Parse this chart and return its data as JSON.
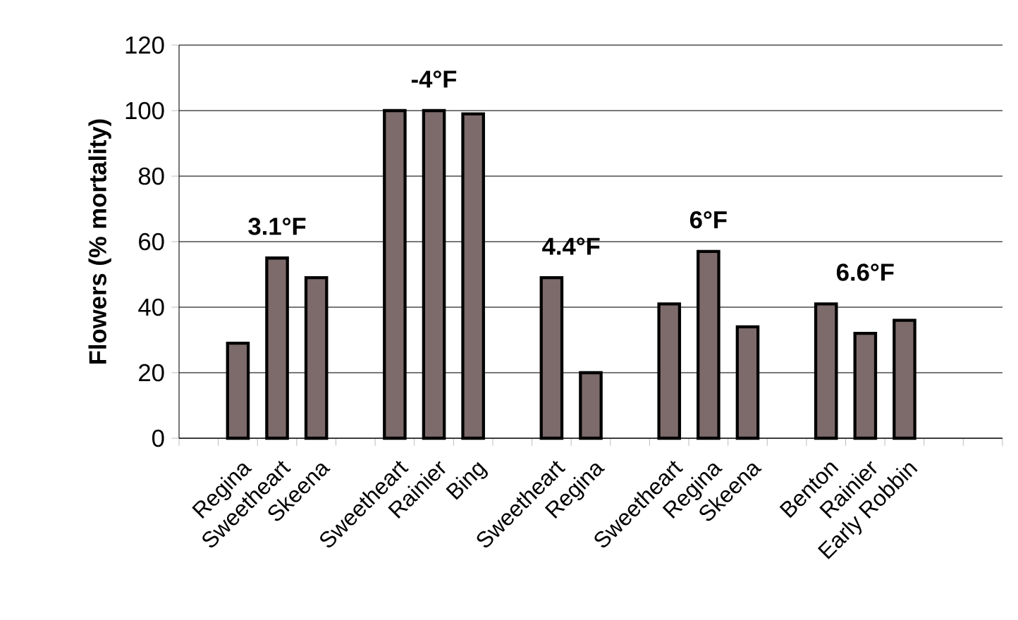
{
  "chart_data": {
    "type": "bar",
    "ylabel": "Flowers (% mortality)",
    "categories": [
      null,
      "Regina",
      "Sweetheart",
      "Skeena",
      null,
      "Sweetheart",
      "Rainier",
      "Bing",
      null,
      "Sweetheart",
      "Regina",
      null,
      "Sweetheart",
      "Regina",
      "Skeena",
      null,
      "Benton",
      "Rainier",
      "Early Robbin",
      null,
      null
    ],
    "values": [
      null,
      29,
      55,
      49,
      null,
      100,
      100,
      99,
      null,
      49,
      20,
      null,
      41,
      57,
      34,
      null,
      41,
      32,
      36,
      null,
      null
    ],
    "color": "#7d6b6b",
    "annotations": [
      "3.1°F",
      "-4°F",
      "4.4°F",
      "6°F",
      "6.6°F"
    ],
    "ylim": [
      0,
      120
    ],
    "yticks": [
      0,
      20,
      40,
      60,
      80,
      100,
      120
    ],
    "grid": "y"
  }
}
